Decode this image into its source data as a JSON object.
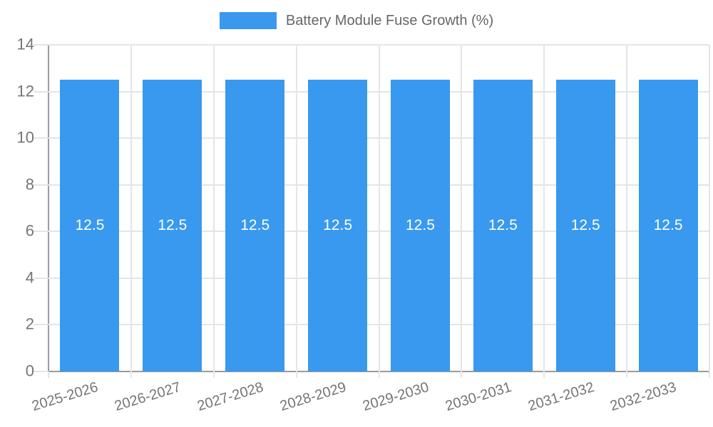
{
  "legend": {
    "label": "Battery Module Fuse Growth (%)"
  },
  "chart_data": {
    "type": "bar",
    "title": "",
    "series_label": "Battery Module Fuse Growth (%)",
    "categories": [
      "2025-2026",
      "2026-2027",
      "2027-2028",
      "2028-2029",
      "2029-2030",
      "2030-2031",
      "2031-2032",
      "2032-2033"
    ],
    "values": [
      12.5,
      12.5,
      12.5,
      12.5,
      12.5,
      12.5,
      12.5,
      12.5
    ],
    "value_labels": [
      "12.5",
      "12.5",
      "12.5",
      "12.5",
      "12.5",
      "12.5",
      "12.5",
      "12.5"
    ],
    "xlabel": "",
    "ylabel": "",
    "ylim": [
      0,
      14
    ],
    "yticks": [
      0,
      2,
      4,
      6,
      8,
      10,
      12,
      14
    ],
    "grid": true,
    "legend_position": "top",
    "colors": {
      "bar": "#3899EE",
      "grid": "#E5E5E5",
      "axis": "#9B9B9B",
      "tick_text": "#757575",
      "legend_text": "#666666",
      "value_label": "#FFFFFF",
      "background": "#FFFFFF"
    }
  }
}
